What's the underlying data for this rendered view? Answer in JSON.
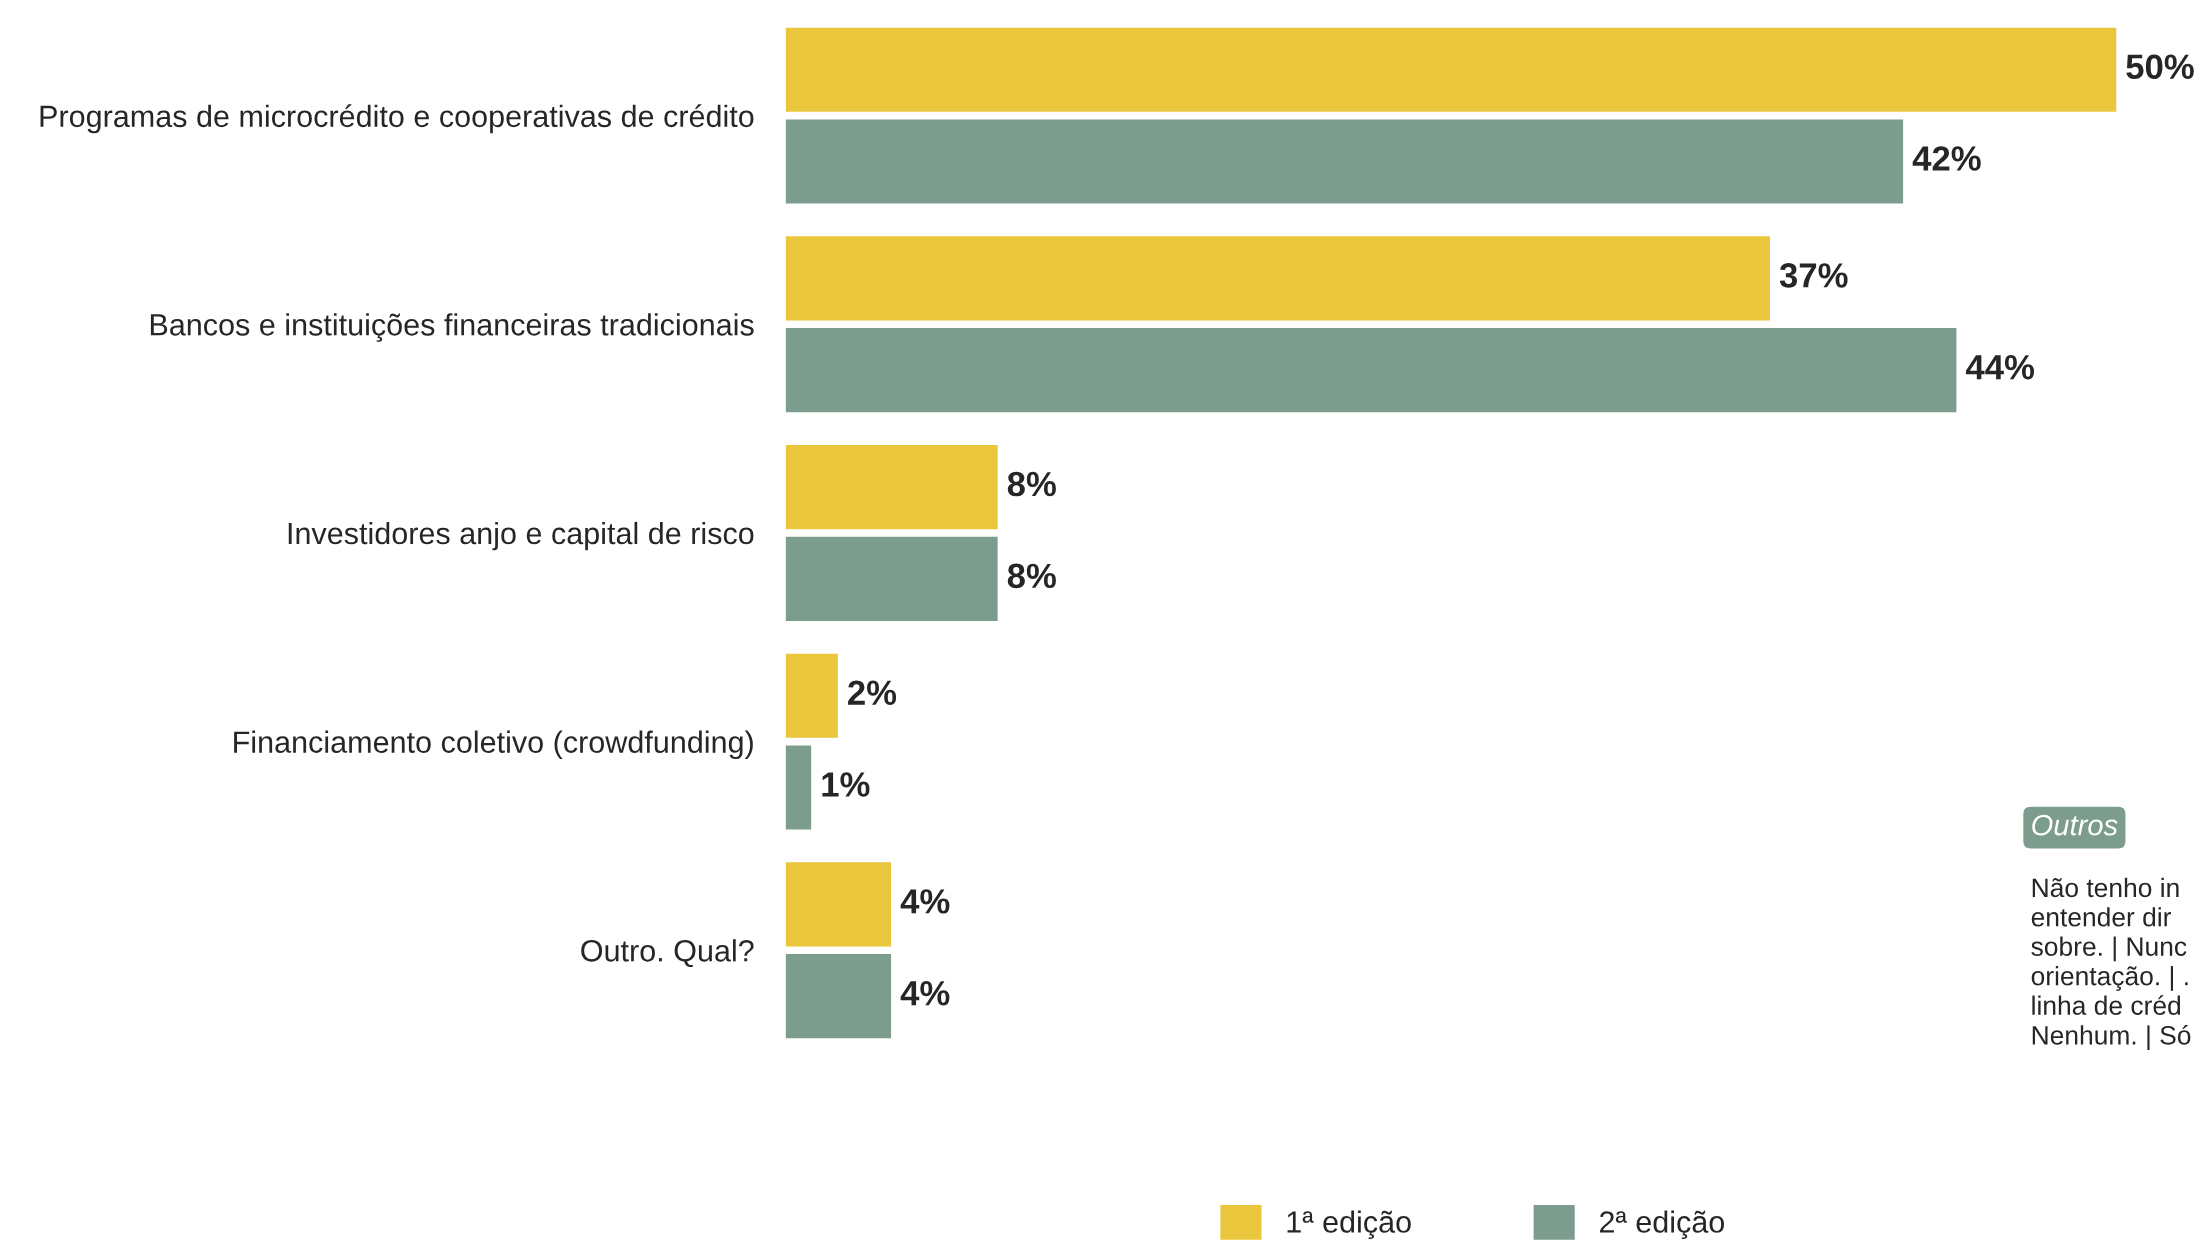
{
  "chart_data": {
    "type": "bar",
    "orientation": "horizontal",
    "categories": [
      "Programas de microcrédito e cooperativas de crédito",
      "Bancos e instituições financeiras tradicionais",
      "Investidores anjo e capital de risco",
      "Financiamento coletivo (crowdfunding)",
      "Outro. Qual?"
    ],
    "series": [
      {
        "name": "1ª edição",
        "color": "#e9c63b",
        "values": [
          50,
          37,
          8,
          2,
          4
        ],
        "value_labels": [
          "50%",
          "37%",
          "8%",
          "2%",
          "4%"
        ]
      },
      {
        "name": "2ª edição",
        "color": "#7c9c8e",
        "values": [
          42,
          44,
          8,
          1,
          4
        ],
        "value_labels": [
          "42%",
          "44%",
          "8%",
          "1%",
          "4%"
        ]
      }
    ],
    "xlim": [
      0,
      50
    ],
    "grid": false,
    "legend": "bottom",
    "annotations": [
      "Outros",
      "Não tenho in\nentender dir\nsobre. | Nunc\norientação. | .\nlinha de créd\nNenhum. | Só"
    ]
  }
}
